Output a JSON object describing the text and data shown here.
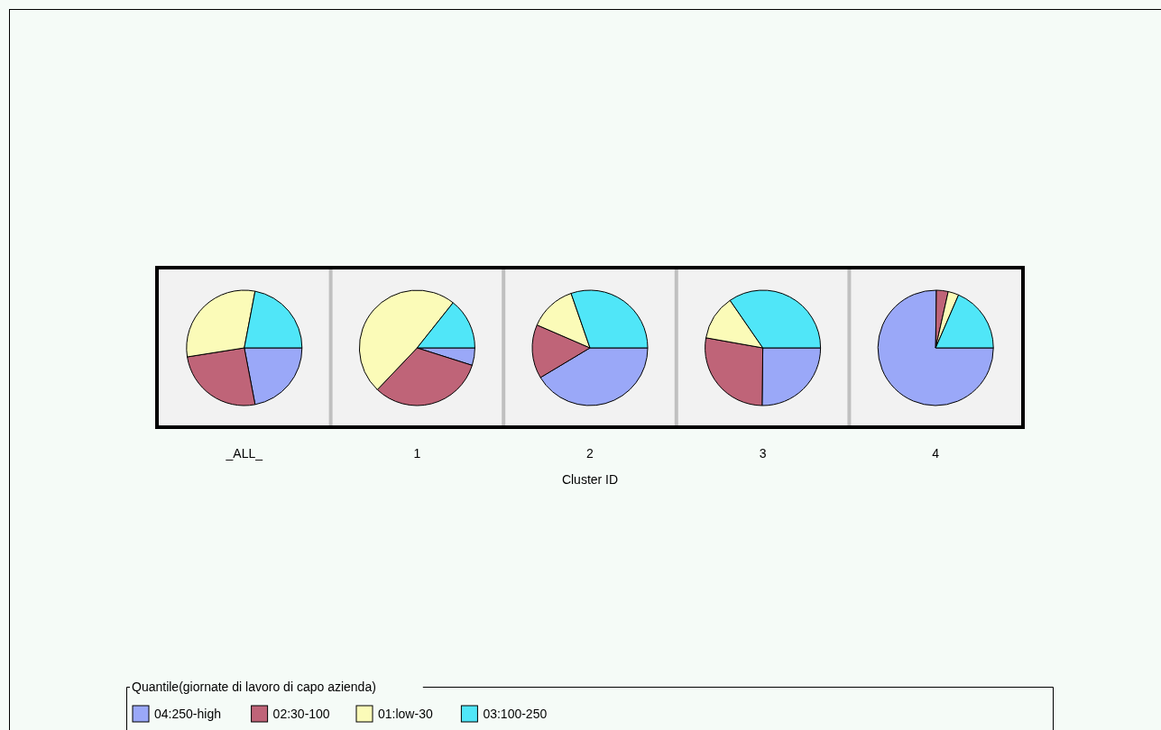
{
  "chart_data": [
    {
      "type": "pie",
      "title": "_ALL_",
      "categories": [
        "04:250-high",
        "02:30-100",
        "01:low-30",
        "03:100-250"
      ],
      "values": [
        22,
        25.5,
        30.5,
        22
      ],
      "colors": [
        "#9aa8f8",
        "#bf6478",
        "#fbfbb8",
        "#50e6f8"
      ],
      "legend": "bottom",
      "legend_title": "Quantile(giornate di lavoro di capo azienda)"
    },
    {
      "type": "pie",
      "title": "1",
      "values": [
        4.9,
        32.2,
        48.6,
        14.3
      ],
      "colors": [
        "#9aa8f8",
        "#bf6478",
        "#fbfbb8",
        "#50e6f8"
      ]
    },
    {
      "type": "pie",
      "title": "2",
      "xlabel": "Cluster ID",
      "values": [
        41.4,
        15.1,
        13.2,
        30.3
      ],
      "colors": [
        "#9aa8f8",
        "#bf6478",
        "#fbfbb8",
        "#50e6f8"
      ]
    },
    {
      "type": "pie",
      "title": "3",
      "values": [
        25.2,
        27.6,
        12.6,
        34.6
      ],
      "colors": [
        "#9aa8f8",
        "#bf6478",
        "#fbfbb8",
        "#50e6f8"
      ]
    },
    {
      "type": "pie",
      "title": "4",
      "values": [
        75.2,
        3.3,
        3,
        18.5
      ],
      "colors": [
        "#9aa8f8",
        "#bf6478",
        "#fbfbb8",
        "#50e6f8"
      ]
    }
  ]
}
